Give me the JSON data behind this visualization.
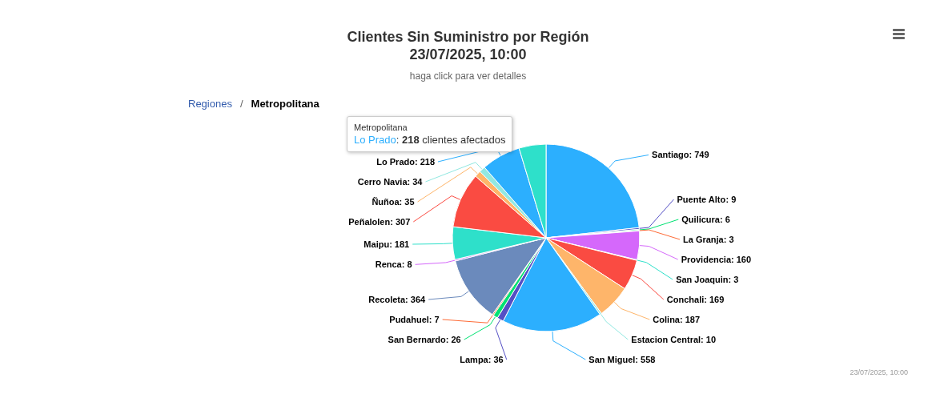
{
  "chart_data": {
    "type": "pie",
    "title": "Clientes Sin Suministro por Región\n23/07/2025, 10:00",
    "subtitle": "haga click para ver detalles",
    "categories": [
      "Santiago",
      "Puente Alto",
      "Quilicura",
      "La Granja",
      "Providencia",
      "San Joaquin",
      "Conchali",
      "Colina",
      "Estacion Central",
      "San Miguel",
      "Lampa",
      "San Bernardo",
      "Pudahuel",
      "Recoleta",
      "Renca",
      "Maipu",
      "Peñalolen",
      "Ñuñoa",
      "Cerro Navia",
      "Lo Prado",
      null
    ],
    "values": [
      749,
      9,
      6,
      3,
      160,
      3,
      169,
      187,
      10,
      558,
      36,
      26,
      7,
      364,
      8,
      181,
      307,
      35,
      34,
      218,
      150
    ],
    "colors": [
      "#2caffe",
      "#544fc5",
      "#00e272",
      "#fe6a35",
      "#d568fb",
      "#2ee0ca",
      "#fa4b42",
      "#feb56a",
      "#91e8e1",
      "#2caffe",
      "#544fc5",
      "#00e272",
      "#fe6a35",
      "#6b8abc",
      "#d568fb",
      "#2ee0ca",
      "#fa4b42",
      "#feb56a",
      "#91e8e1",
      "#2caffe",
      "#2ee0ca"
    ],
    "value_labels": [
      "749",
      "9",
      "6",
      "3",
      "160",
      "3",
      "169",
      "187",
      "10",
      "558",
      "36",
      "26",
      "7",
      "364",
      "8",
      "181",
      "307",
      "35",
      "34",
      "218",
      null
    ],
    "annotations": [
      "Regiones",
      "/",
      "Metropolitana",
      "Metropolitana",
      "Lo Prado",
      ": ",
      "218",
      " clientes afectados",
      "23/07/2025, 10:00",
      ": "
    ]
  }
}
